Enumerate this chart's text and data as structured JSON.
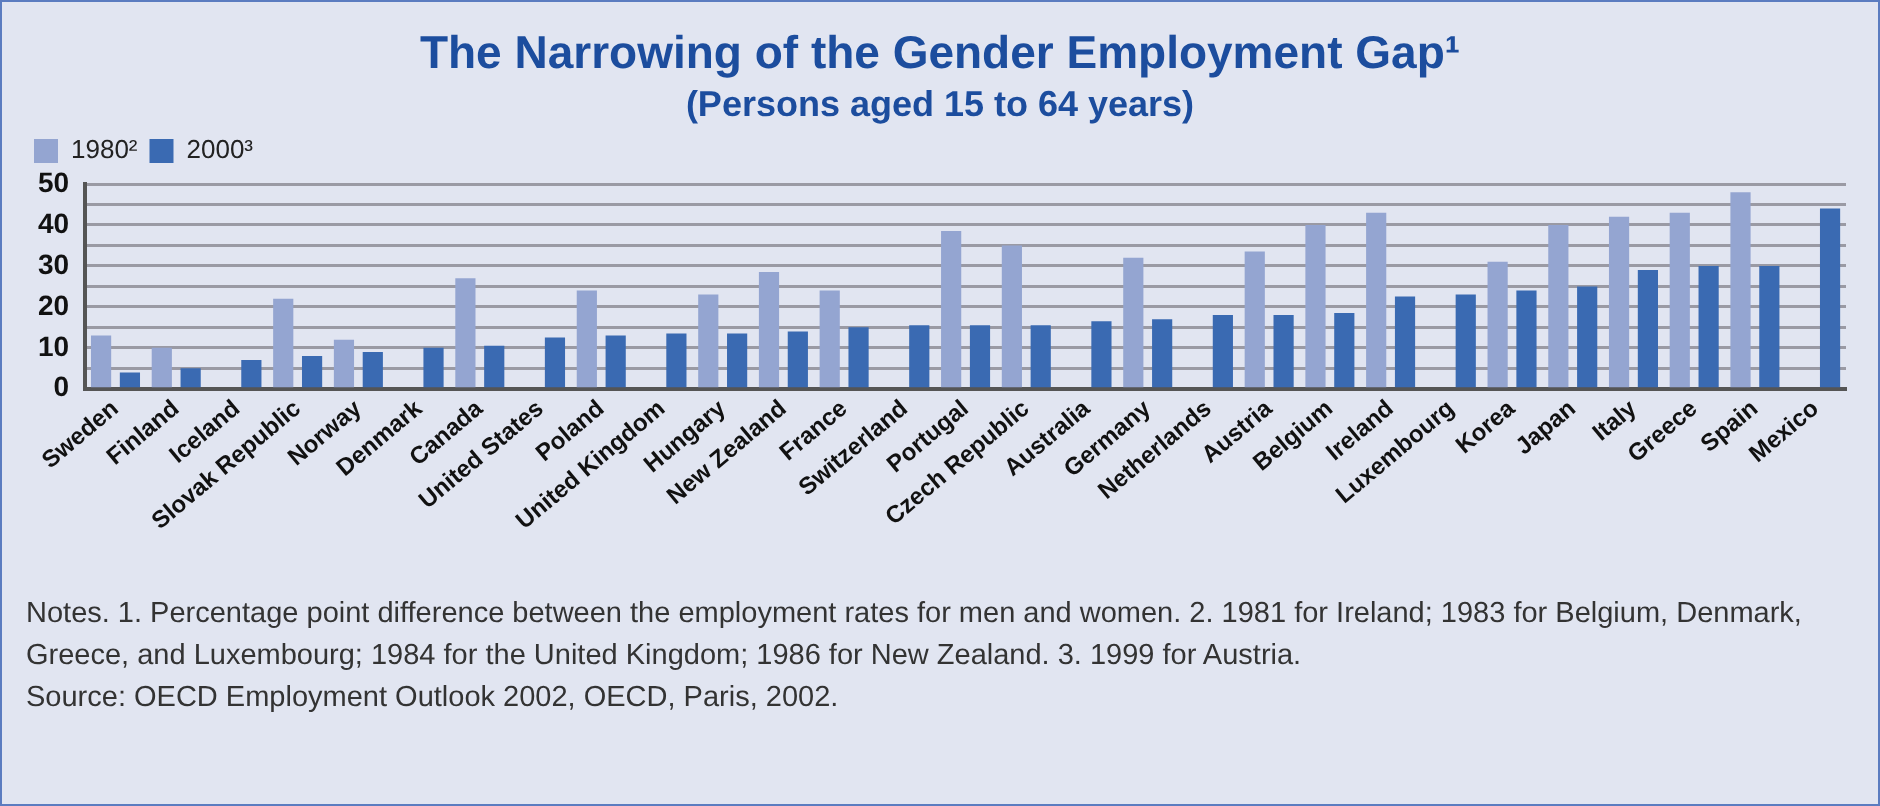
{
  "chart_data": {
    "type": "bar",
    "title": "The Narrowing of the Gender Employment Gap¹",
    "subtitle": "(Persons aged 15 to 64 years)",
    "categories": [
      "Sweden",
      "Finland",
      "Iceland",
      "Slovak Republic",
      "Norway",
      "Denmark",
      "Canada",
      "United States",
      "Poland",
      "United Kingdom",
      "Hungary",
      "New Zealand",
      "France",
      "Switzerland",
      "Portugal",
      "Czech Republic",
      "Australia",
      "Germany",
      "Netherlands",
      "Austria",
      "Belgium",
      "Ireland",
      "Luxembourg",
      "Korea",
      "Japan",
      "Italy",
      "Greece",
      "Spain",
      "Mexico"
    ],
    "series": [
      {
        "name": "1980²",
        "color": "#94a5d1",
        "values": [
          13,
          10,
          null,
          22,
          12,
          null,
          27,
          null,
          24,
          null,
          23,
          28.5,
          24,
          null,
          38.5,
          35,
          null,
          32,
          null,
          33.5,
          40,
          43,
          null,
          31,
          40,
          42,
          43,
          48,
          null
        ]
      },
      {
        "name": "2000³",
        "color": "#3a6ab2",
        "values": [
          4,
          5,
          7,
          8,
          9,
          10,
          10.5,
          12.5,
          13,
          13.5,
          13.5,
          14,
          15,
          15.5,
          15.5,
          15.5,
          16.5,
          17,
          18,
          18,
          18.5,
          22.5,
          23,
          24,
          25,
          29,
          30,
          30,
          44
        ]
      }
    ],
    "ylim": [
      0,
      50
    ],
    "yticks": [
      0,
      {
        "value": 5,
        "label": null
      },
      10,
      {
        "value": 15,
        "label": null
      },
      20,
      {
        "value": 25,
        "label": null
      },
      30,
      {
        "value": 35,
        "label": null
      },
      40,
      {
        "value": 45,
        "label": null
      },
      50
    ],
    "grid": "y",
    "legend": "top left",
    "annotations": [
      "Notes. 1. Percentage point difference between the employment rates for men and women. 2. 1981 for Ireland; 1983 for Belgium, Denmark, Greece, and Luxembourg; 1984 for the United Kingdom; 1986 for New Zealand. 3. 1999 for Austria.",
      "Source: OECD Employment Outlook 2002, OECD, Paris, 2002."
    ]
  }
}
